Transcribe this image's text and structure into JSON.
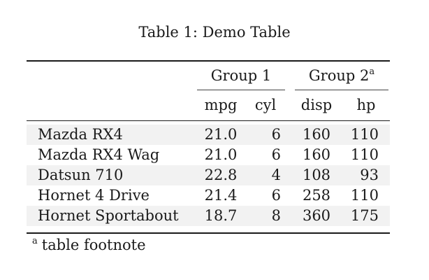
{
  "caption": {
    "label": "Table 1:",
    "title": "Demo Table"
  },
  "table": {
    "groups": [
      {
        "label": "Group 1",
        "marker": ""
      },
      {
        "label": "Group 2",
        "marker": "a"
      }
    ],
    "columns": [
      "mpg",
      "cyl",
      "disp",
      "hp"
    ],
    "rows": [
      {
        "name": "Mazda RX4",
        "mpg": "21.0",
        "cyl": "6",
        "disp": "160",
        "hp": "110"
      },
      {
        "name": "Mazda RX4 Wag",
        "mpg": "21.0",
        "cyl": "6",
        "disp": "160",
        "hp": "110"
      },
      {
        "name": "Datsun 710",
        "mpg": "22.8",
        "cyl": "4",
        "disp": "108",
        "hp": "93"
      },
      {
        "name": "Hornet 4 Drive",
        "mpg": "21.4",
        "cyl": "6",
        "disp": "258",
        "hp": "110"
      },
      {
        "name": "Hornet Sportabout",
        "mpg": "18.7",
        "cyl": "8",
        "disp": "360",
        "hp": "175"
      }
    ],
    "stripe_color": "#f2f2f2"
  },
  "footnote": {
    "marker": "a",
    "text": "table footnote"
  }
}
